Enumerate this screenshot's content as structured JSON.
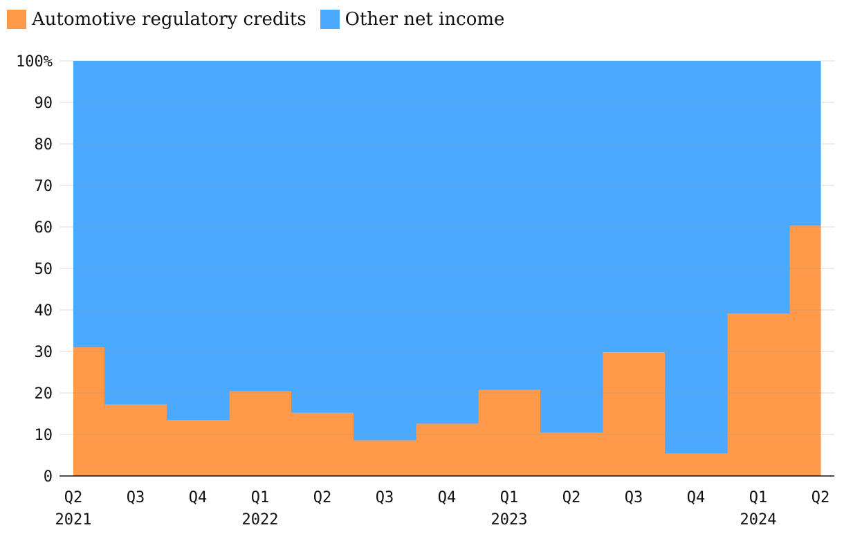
{
  "legend": {
    "items": [
      {
        "label": "Automotive regulatory credits",
        "color": "#ff9a4b"
      },
      {
        "label": "Other net income",
        "color": "#4ba9ff"
      }
    ]
  },
  "chart_data": {
    "type": "area",
    "step": true,
    "stacked_percent": true,
    "x_tick_labels": [
      "Q2",
      "Q3",
      "Q4",
      "Q1",
      "Q2",
      "Q3",
      "Q4",
      "Q1",
      "Q2",
      "Q3",
      "Q4",
      "Q1",
      "Q2"
    ],
    "x_year_labels": [
      {
        "index": 0,
        "label": "2021"
      },
      {
        "index": 3,
        "label": "2022"
      },
      {
        "index": 7,
        "label": "2023"
      },
      {
        "index": 11,
        "label": "2024"
      }
    ],
    "categories": [
      "Q2 2021",
      "Q3 2021",
      "Q4 2021",
      "Q1 2022",
      "Q2 2022",
      "Q3 2022",
      "Q4 2022",
      "Q1 2023",
      "Q2 2023",
      "Q3 2023",
      "Q4 2023",
      "Q1 2024",
      "Q2 2024"
    ],
    "series": [
      {
        "name": "Automotive regulatory credits",
        "color": "#ff9a4b",
        "values": [
          31,
          17.2,
          13.5,
          20.4,
          15.2,
          8.6,
          12.6,
          20.7,
          10.4,
          29.8,
          5.4,
          39.1,
          60.3
        ]
      },
      {
        "name": "Other net income",
        "color": "#4ba9ff",
        "values": [
          69,
          82.8,
          86.5,
          79.6,
          84.8,
          91.4,
          87.4,
          79.3,
          89.6,
          70.2,
          94.6,
          60.9,
          39.7
        ]
      }
    ],
    "y_ticks": [
      0,
      10,
      20,
      30,
      40,
      50,
      60,
      70,
      80,
      90,
      100
    ],
    "y_tick_labels": [
      "0",
      "10",
      "20",
      "30",
      "40",
      "50",
      "60",
      "70",
      "80",
      "90",
      "100%"
    ],
    "ylim": [
      0,
      100
    ],
    "grid": true
  }
}
